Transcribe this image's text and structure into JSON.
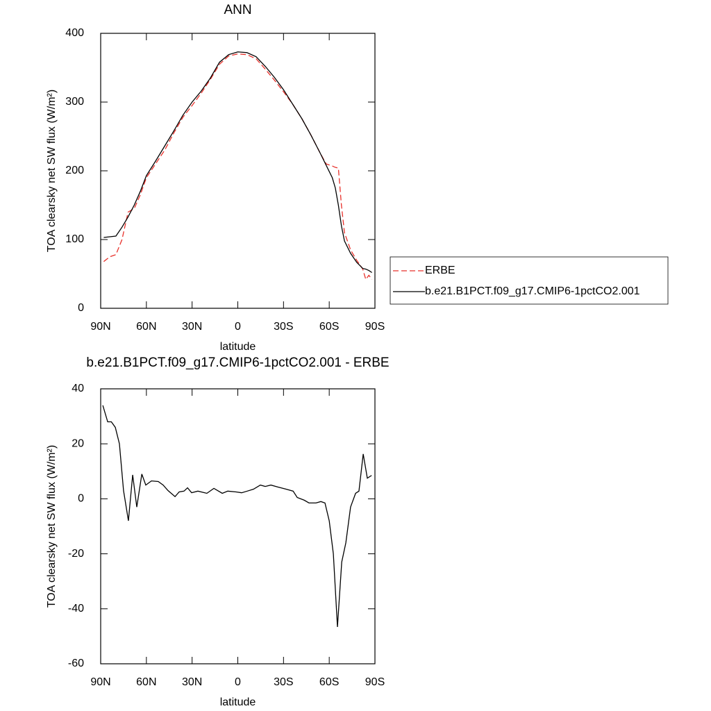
{
  "chart_data": [
    {
      "type": "line",
      "title": "ANN",
      "xlabel": "latitude",
      "ylabel": "TOA clearsky net SW flux (W/m²)",
      "x": [
        88,
        84,
        80,
        76,
        72,
        68,
        64,
        60,
        54,
        48,
        42,
        36,
        30,
        24,
        18,
        12,
        6,
        0,
        -6,
        -12,
        -18,
        -24,
        -30,
        -36,
        -42,
        -48,
        -54,
        -58,
        -62,
        -64,
        -66,
        -68,
        -70,
        -74,
        -78,
        -82,
        -84,
        -86,
        -88
      ],
      "series": [
        {
          "name": "ERBE",
          "color": "#e8302a",
          "dash": true,
          "values": [
            68,
            75,
            78,
            100,
            140,
            145,
            165,
            190,
            210,
            230,
            255,
            278,
            295,
            313,
            333,
            355,
            367,
            370,
            369,
            363,
            348,
            332,
            315,
            297,
            276,
            252,
            226,
            210,
            207,
            205,
            204,
            150,
            110,
            85,
            70,
            57,
            42,
            48,
            42
          ]
        },
        {
          "name": "b.e21.B1PCT.f09_g17.CMIP6-1pctCO2.001",
          "color": "#000000",
          "dash": false,
          "values": [
            103,
            104,
            105,
            118,
            133,
            150,
            170,
            193,
            214,
            236,
            258,
            281,
            300,
            316,
            335,
            358,
            369,
            373,
            372,
            366,
            352,
            336,
            318,
            297,
            276,
            252,
            226,
            208,
            190,
            175,
            150,
            120,
            98,
            80,
            67,
            58,
            57,
            55,
            52
          ]
        }
      ],
      "xlim": [
        90,
        -90
      ],
      "xticks": [
        {
          "value": 90,
          "label": "90N"
        },
        {
          "value": 60,
          "label": "60N"
        },
        {
          "value": 30,
          "label": "30N"
        },
        0,
        {
          "value": -30,
          "label": "30S"
        },
        {
          "value": -60,
          "label": "60S"
        },
        {
          "value": -90,
          "label": "90S"
        }
      ],
      "ylim": [
        0,
        400
      ],
      "yticks": [
        0,
        100,
        200,
        300,
        400
      ],
      "legend": "right"
    },
    {
      "type": "line",
      "title": "b.e21.B1PCT.f09_g17.CMIP6-1pctCO2.001 - ERBE",
      "xlabel": "latitude",
      "ylabel": "TOA clearsky net SW flux (W/m²)",
      "x": [
        88.6,
        85.4,
        83,
        80.4,
        77.7,
        75,
        71.8,
        69,
        66.3,
        63,
        60.4,
        56.7,
        52.2,
        49,
        45.8,
        41.2,
        38.5,
        35.3,
        33,
        30.3,
        26.2,
        20.3,
        15.7,
        10.2,
        6.6,
        1.1,
        -2.5,
        -6.2,
        -10.3,
        -14.8,
        -18,
        -21.7,
        -26.2,
        -31.7,
        -36.3,
        -39,
        -43.6,
        -46.7,
        -51.3,
        -54.5,
        -57.2,
        -60,
        -62.7,
        -65.4,
        -68.2,
        -70.9,
        -74,
        -77.3,
        -79.5,
        -82.3,
        -85,
        -87.8
      ],
      "series": [
        {
          "color": "#000000",
          "dash": false,
          "values": [
            34,
            28,
            28,
            26,
            20,
            3,
            -8,
            8.7,
            -3,
            9,
            5,
            6.5,
            6.3,
            5,
            3,
            0.8,
            2.5,
            2.8,
            4,
            2.2,
            2.8,
            2,
            3.8,
            2,
            2.8,
            2.5,
            2.2,
            2.8,
            3.5,
            5,
            4.5,
            5,
            4.3,
            3.5,
            2.8,
            0.5,
            -0.5,
            -1.5,
            -1.5,
            -1,
            -1.5,
            -8,
            -20,
            -46.6,
            -23,
            -16,
            -3,
            2,
            2.8,
            16.3,
            7.5,
            8.5
          ]
        }
      ],
      "xlim": [
        90,
        -90
      ],
      "xticks": [
        {
          "value": 90,
          "label": "90N"
        },
        {
          "value": 60,
          "label": "60N"
        },
        {
          "value": 30,
          "label": "30N"
        },
        0,
        {
          "value": -30,
          "label": "30S"
        },
        {
          "value": -60,
          "label": "60S"
        },
        {
          "value": -90,
          "label": "90S"
        }
      ],
      "ylim": [
        -60,
        40
      ],
      "yticks": [
        -60,
        -40,
        -20,
        0,
        20,
        40
      ]
    }
  ]
}
